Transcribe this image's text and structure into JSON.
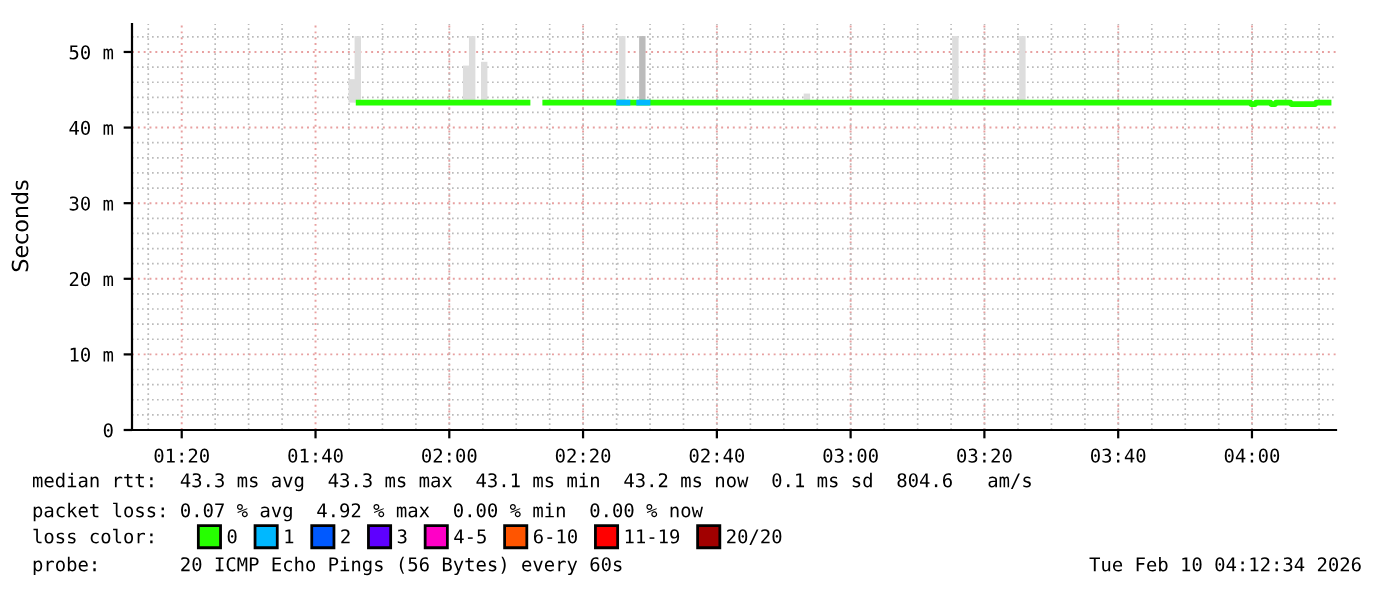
{
  "chart_data": {
    "type": "line",
    "ylabel": "Seconds",
    "legend_title": "loss color:",
    "legend": "bottom",
    "grid": true,
    "xlim": [
      1.2094,
      4.2094
    ],
    "xticks": [
      {
        "value": 1.3333,
        "label": "01:20"
      },
      {
        "value": 1.6667,
        "label": "01:40"
      },
      {
        "value": 2.0,
        "label": "02:00"
      },
      {
        "value": 2.3333,
        "label": "02:20"
      },
      {
        "value": 2.6667,
        "label": "02:40"
      },
      {
        "value": 3.0,
        "label": "03:00"
      },
      {
        "value": 3.3333,
        "label": "03:20"
      },
      {
        "value": 3.6667,
        "label": "03:40"
      },
      {
        "value": 4.0,
        "label": "04:00"
      }
    ],
    "ylim": [
      0,
      53.7
    ],
    "yticks": [
      {
        "value": 0,
        "label": "0"
      },
      {
        "value": 10,
        "label": "10 m"
      },
      {
        "value": 20,
        "label": "20 m"
      },
      {
        "value": 30,
        "label": "30 m"
      },
      {
        "value": 40,
        "label": "40 m"
      },
      {
        "value": 50,
        "label": "50 m"
      }
    ],
    "series": [
      {
        "type": "bar",
        "x": [
          1.757,
          1.772,
          2.042,
          2.057,
          2.087,
          2.431,
          2.481,
          2.891,
          3.261,
          3.428
        ],
        "base": [
          43.3,
          43.3,
          43.3,
          43.3,
          43.3,
          43.3,
          43.3,
          43.3,
          43.3,
          43.3
        ],
        "values": [
          3.1,
          8.8,
          4.9,
          8.8,
          5.4,
          8.8,
          8.8,
          1.2,
          8.8,
          8.8
        ],
        "colors": [
          "#dddddd",
          "#dddddd",
          "#dddddd",
          "#dddddd",
          "#dddddd",
          "#dddddd",
          "#bbbbbb",
          "#dddddd",
          "#dddddd",
          "#dddddd"
        ]
      },
      {
        "name": "0",
        "color": "#26ff00",
        "x": [
          1.767,
          2.202,
          2.217,
          2.232,
          3.996,
          3.998,
          4.008,
          4.01,
          4.046,
          4.048,
          4.058,
          4.06,
          4.096,
          4.098,
          4.158,
          4.16,
          4.198
        ],
        "values": [
          43.3,
          43.3,
          null,
          43.3,
          43.3,
          43.1,
          43.1,
          43.3,
          43.3,
          43.1,
          43.1,
          43.3,
          43.3,
          43.1,
          43.1,
          43.3,
          43.3
        ]
      },
      {
        "name": "1",
        "color": "#00b8ff",
        "x": [
          2.416,
          2.451,
          2.458,
          2.466,
          2.501
        ],
        "values": [
          43.3,
          43.3,
          null,
          43.3,
          43.3
        ]
      },
      {
        "name": "2",
        "color": "#0059ff"
      },
      {
        "name": "3",
        "color": "#5e00ff"
      },
      {
        "name": "4-5",
        "color": "#ff00c6"
      },
      {
        "name": "6-10",
        "color": "#ff5500"
      },
      {
        "name": "11-19",
        "color": "#ff0000"
      },
      {
        "name": "20/20",
        "color": "#a10000"
      }
    ],
    "annotations": [
      "median rtt:  43.3 ms avg  43.3 ms max  43.1 ms min  43.2 ms now  0.1 ms sd  804.6   am/s",
      "packet loss: 0.07 % avg  4.92 % max  0.00 % min  0.00 % now",
      "probe:       20 ICMP Echo Pings (56 Bytes) every 60s",
      "Tue Feb 10 04:12:34 2026"
    ]
  }
}
